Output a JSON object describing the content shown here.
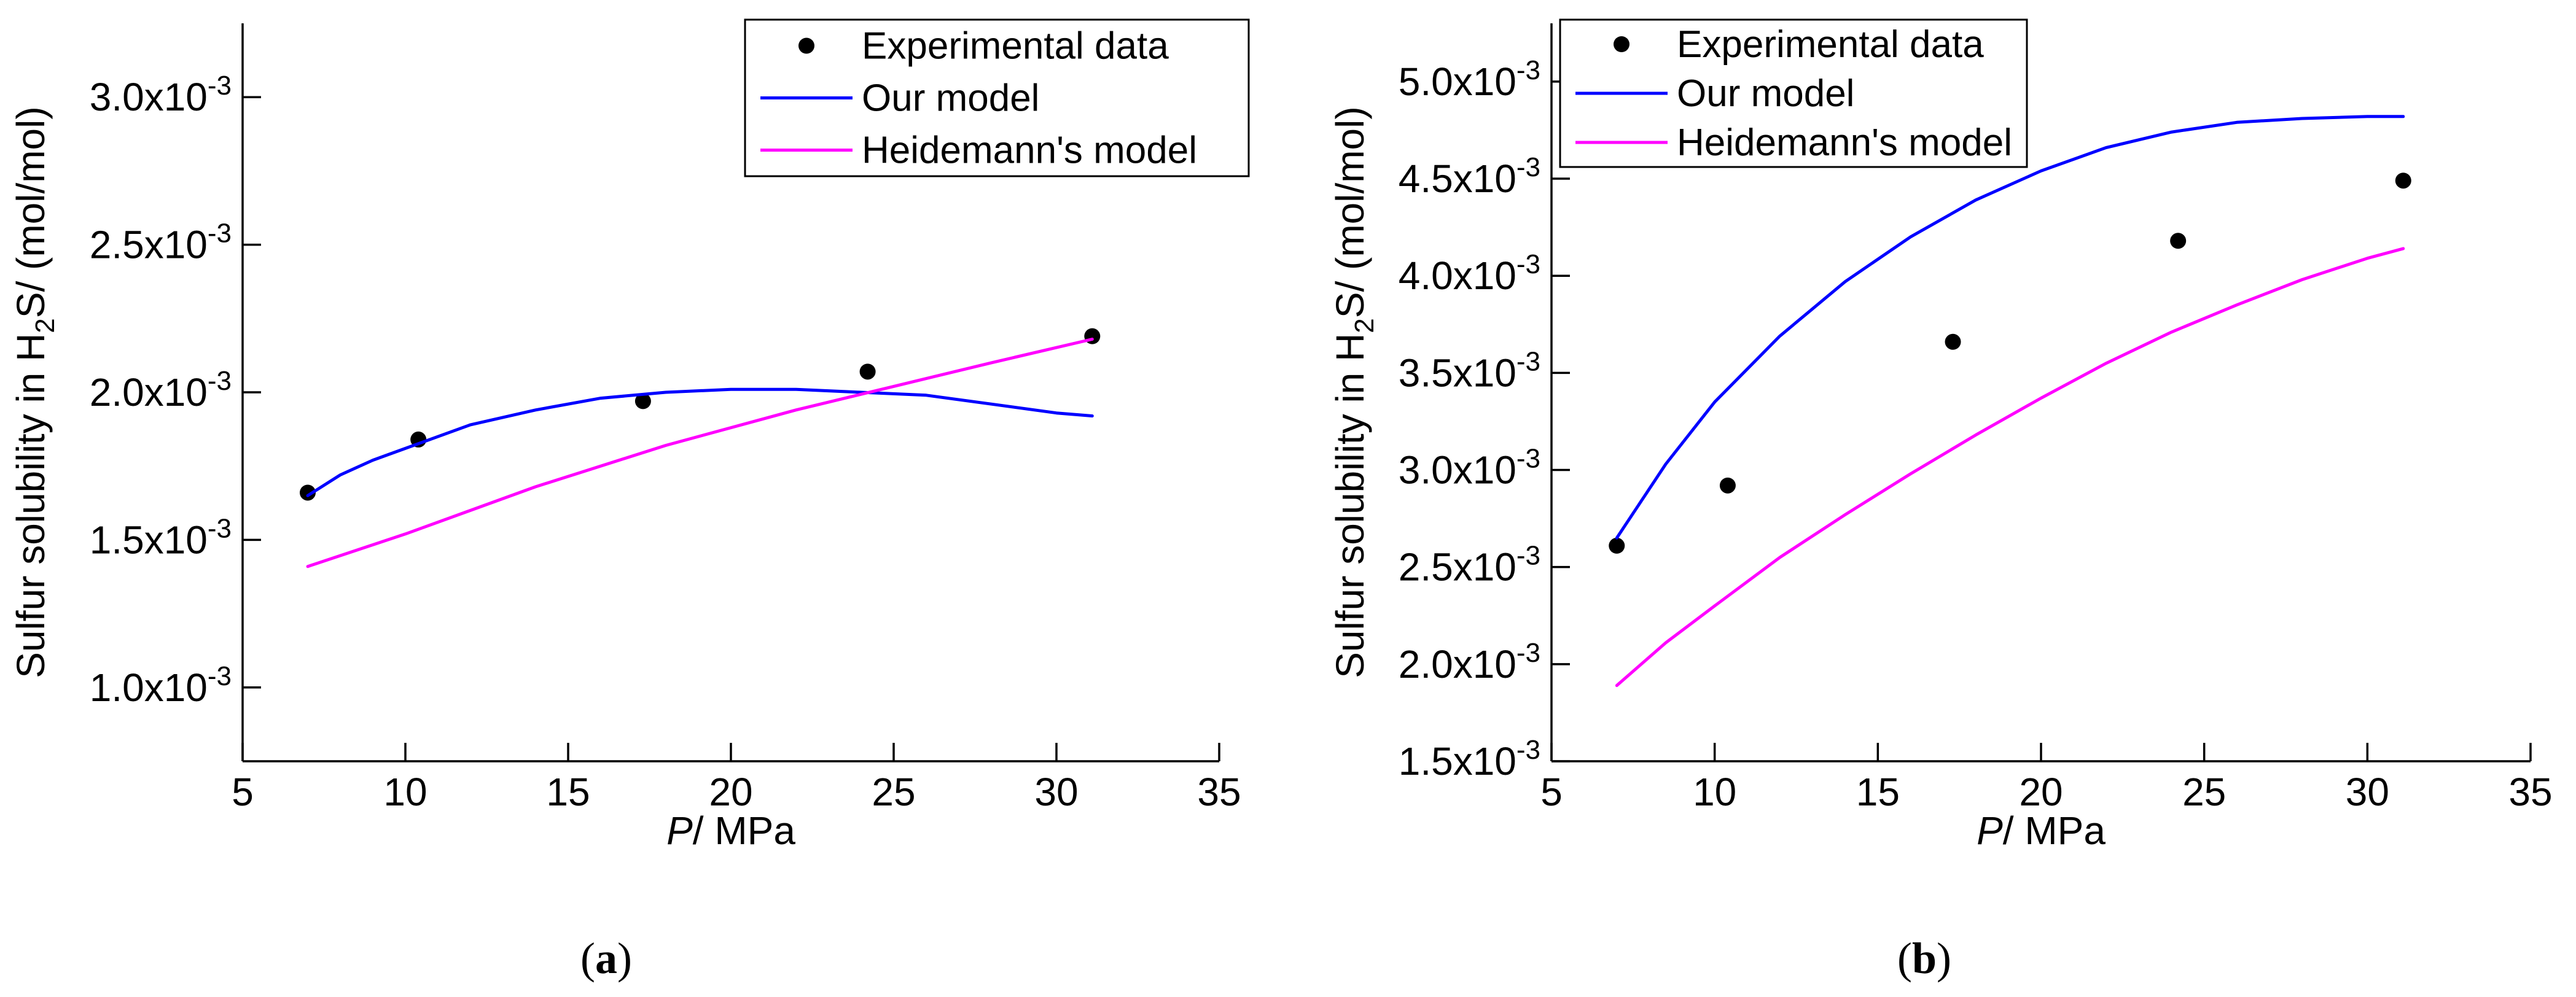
{
  "chart_data": [
    {
      "type": "line",
      "caption": "a",
      "xlabel": {
        "italic": "P",
        "rest": "/ MPa"
      },
      "ylabel": {
        "pre": "Sulfur solubility in H",
        "sub": "2",
        "post": "S/ (mol/mol)"
      },
      "xlim": [
        5,
        35
      ],
      "ylim": [
        0.00075,
        0.00325
      ],
      "xticks": [
        "5",
        "10",
        "15",
        "20",
        "25",
        "30",
        "35"
      ],
      "yticks": [
        {
          "value": 0.001,
          "label": "1.0x10",
          "exp": "-3"
        },
        {
          "value": 0.0015,
          "label": "1.5x10",
          "exp": "-3"
        },
        {
          "value": 0.002,
          "label": "2.0x10",
          "exp": "-3"
        },
        {
          "value": 0.0025,
          "label": "2.5x10",
          "exp": "-3"
        },
        {
          "value": 0.003,
          "label": "3.0x10",
          "exp": "-3"
        }
      ],
      "legend": {
        "position": "top-right",
        "entries": [
          "Experimental data",
          "Our model",
          "Heidemann's model"
        ]
      },
      "series": [
        {
          "name": "Experimental data",
          "kind": "scatter",
          "color": "#000000",
          "x": [
            7.0,
            10.4,
            17.3,
            24.2,
            31.1
          ],
          "y": [
            0.00166,
            0.00184,
            0.00197,
            0.00207,
            0.00219
          ]
        },
        {
          "name": "Our model",
          "kind": "line",
          "color": "#0000ff",
          "x": [
            7.0,
            8.0,
            9.0,
            10.0,
            12.0,
            14.0,
            16.0,
            18.0,
            20.0,
            22.0,
            24.0,
            26.0,
            28.0,
            30.0,
            31.1
          ],
          "y": [
            0.00165,
            0.00172,
            0.00177,
            0.00181,
            0.00189,
            0.00194,
            0.00198,
            0.002,
            0.00201,
            0.00201,
            0.002,
            0.00199,
            0.00196,
            0.00193,
            0.00192
          ]
        },
        {
          "name": "Heidemann's model",
          "kind": "line",
          "color": "#ff00ff",
          "x": [
            7.0,
            10.0,
            14.0,
            18.0,
            22.0,
            25.0,
            28.0,
            31.1
          ],
          "y": [
            0.00141,
            0.00152,
            0.00168,
            0.00182,
            0.00194,
            0.00202,
            0.0021,
            0.00218
          ]
        }
      ]
    },
    {
      "type": "line",
      "caption": "b",
      "xlabel": {
        "italic": "P",
        "rest": "/ MPa"
      },
      "ylabel": {
        "pre": "Sulfur solubility in H",
        "sub": "2",
        "post": "S/ (mol/mol)"
      },
      "xlim": [
        5,
        35
      ],
      "ylim": [
        0.0015,
        0.0053
      ],
      "xticks": [
        "5",
        "10",
        "15",
        "20",
        "25",
        "30",
        "35"
      ],
      "yticks": [
        {
          "value": 0.0015,
          "label": "1.5x10",
          "exp": "-3"
        },
        {
          "value": 0.002,
          "label": "2.0x10",
          "exp": "-3"
        },
        {
          "value": 0.0025,
          "label": "2.5x10",
          "exp": "-3"
        },
        {
          "value": 0.003,
          "label": "3.0x10",
          "exp": "-3"
        },
        {
          "value": 0.0035,
          "label": "3.5x10",
          "exp": "-3"
        },
        {
          "value": 0.004,
          "label": "4.0x10",
          "exp": "-3"
        },
        {
          "value": 0.0045,
          "label": "4.5x10",
          "exp": "-3"
        },
        {
          "value": 0.005,
          "label": "5.0x10",
          "exp": "-3"
        }
      ],
      "legend": {
        "position": "top-left",
        "entries": [
          "Experimental data",
          "Our model",
          "Heidemann's model"
        ]
      },
      "series": [
        {
          "name": "Experimental data",
          "kind": "scatter",
          "color": "#000000",
          "x": [
            7.0,
            10.4,
            17.3,
            24.2,
            31.1
          ],
          "y": [
            0.00261,
            0.00292,
            0.00366,
            0.00418,
            0.00449
          ]
        },
        {
          "name": "Our model",
          "kind": "line",
          "color": "#0000ff",
          "x": [
            7.0,
            8.5,
            10.0,
            12.0,
            14.0,
            16.0,
            18.0,
            20.0,
            22.0,
            24.0,
            26.0,
            28.0,
            30.0,
            31.1
          ],
          "y": [
            0.00265,
            0.00303,
            0.00335,
            0.00369,
            0.00397,
            0.0042,
            0.00439,
            0.00454,
            0.00466,
            0.00474,
            0.00479,
            0.00481,
            0.00482,
            0.00482
          ]
        },
        {
          "name": "Heidemann's model",
          "kind": "line",
          "color": "#ff00ff",
          "x": [
            7.0,
            8.5,
            10.0,
            12.0,
            14.0,
            16.0,
            18.0,
            20.0,
            22.0,
            24.0,
            26.0,
            28.0,
            30.0,
            31.1
          ],
          "y": [
            0.00189,
            0.00211,
            0.0023,
            0.00255,
            0.00277,
            0.00298,
            0.00318,
            0.00337,
            0.00355,
            0.00371,
            0.00385,
            0.00398,
            0.00409,
            0.00414
          ]
        }
      ]
    }
  ]
}
